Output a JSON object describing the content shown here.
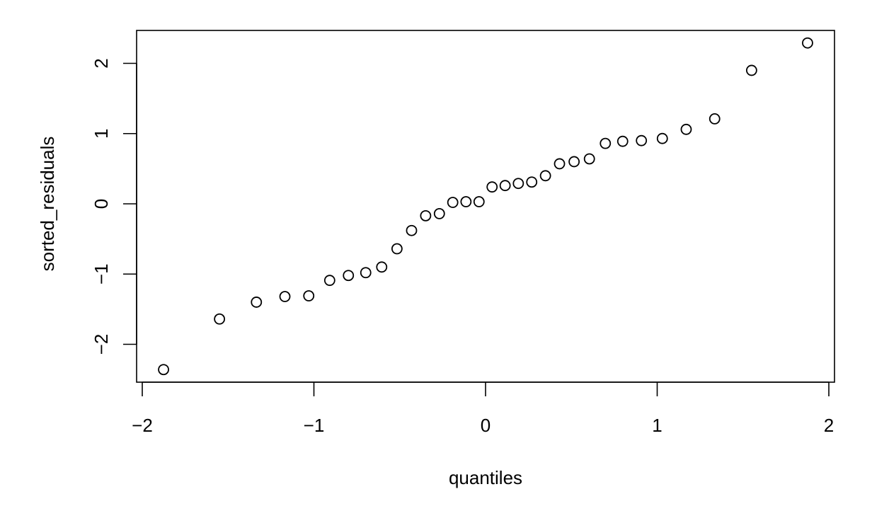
{
  "chart_data": {
    "type": "scatter",
    "title": "",
    "xlabel": "quantiles",
    "ylabel": "sorted_residuals",
    "xlim": [
      -2.0,
      2.0
    ],
    "ylim": [
      -2.5,
      2.45
    ],
    "grid": false,
    "legend": "none",
    "marker": "open-circle",
    "color": "#000000",
    "x_ticks": [
      "-2",
      "-1",
      "0",
      "1",
      "2"
    ],
    "y_ticks": [
      "-2",
      "-1",
      "0",
      "1",
      "2"
    ],
    "x_tick_labels": [
      "−2",
      "−1",
      "0",
      "1",
      "2"
    ],
    "y_tick_labels": [
      "−2",
      "−1",
      "0",
      "1",
      "2"
    ],
    "points": {
      "x": [
        -1.876,
        -1.55,
        -1.335,
        -1.169,
        -1.03,
        -0.908,
        -0.799,
        -0.698,
        -0.605,
        -0.516,
        -0.431,
        -0.349,
        -0.269,
        -0.191,
        -0.114,
        -0.038,
        0.038,
        0.114,
        0.191,
        0.269,
        0.349,
        0.431,
        0.516,
        0.605,
        0.698,
        0.799,
        0.908,
        1.03,
        1.169,
        1.335,
        1.55,
        1.876
      ],
      "y": [
        -2.36,
        -1.64,
        -1.4,
        -1.32,
        -1.31,
        -1.09,
        -1.02,
        -0.98,
        -0.9,
        -0.64,
        -0.38,
        -0.17,
        -0.14,
        0.02,
        0.03,
        0.03,
        0.24,
        0.26,
        0.29,
        0.31,
        0.4,
        0.57,
        0.6,
        0.64,
        0.86,
        0.89,
        0.9,
        0.93,
        1.06,
        1.21,
        1.9,
        2.29
      ]
    }
  }
}
